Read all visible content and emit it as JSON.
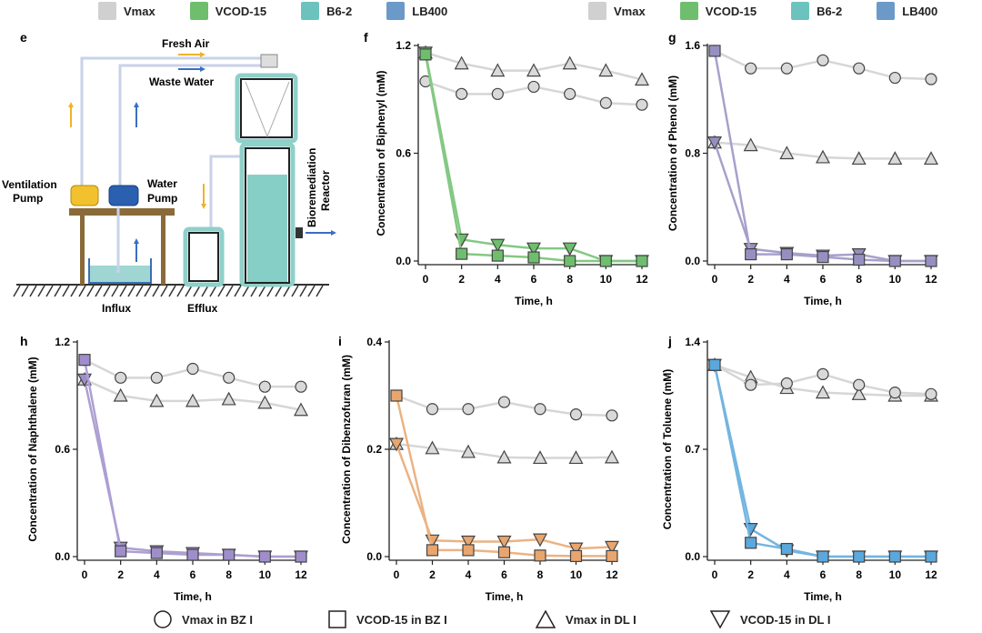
{
  "legend_top": [
    {
      "label": "Vmax",
      "color": "#d0d0d0"
    },
    {
      "label": "VCOD-15",
      "color": "#6ebe6e"
    },
    {
      "label": "B6-2",
      "color": "#6cc3bd"
    },
    {
      "label": "LB400",
      "color": "#6b9ac8"
    }
  ],
  "legend_bottom": [
    {
      "label": "Vmax in BZ I",
      "marker": "circle"
    },
    {
      "label": "VCOD-15 in BZ I",
      "marker": "square"
    },
    {
      "label": "Vmax in DL I",
      "marker": "triangle-up"
    },
    {
      "label": "VCOD-15 in DL I",
      "marker": "triangle-down"
    }
  ],
  "diagram": {
    "letter": "e",
    "fresh_air": "Fresh Air",
    "waste_water": "Waste Water",
    "ventilation_pump": [
      "Ventilation",
      "Pump"
    ],
    "water_pump": [
      "Water",
      "Pump"
    ],
    "reactor": [
      "Bioremediation",
      "Reactor"
    ],
    "influx": "Influx",
    "efflux": "Efflux"
  },
  "chart_data": [
    {
      "letter": "f",
      "type": "line",
      "xlabel": "Time, h",
      "ylabel": "Concentration of Biphenyl (mM)",
      "ylim": [
        0,
        1.2
      ],
      "yticks": [
        "0.0",
        "0.6",
        "1.2"
      ],
      "x": [
        0,
        2,
        4,
        6,
        8,
        10,
        12
      ],
      "color": "#6ebe6e",
      "series": [
        {
          "name": "Vmax in BZ I",
          "marker": "circle",
          "values": [
            1.0,
            0.93,
            0.93,
            0.97,
            0.93,
            0.88,
            0.87
          ]
        },
        {
          "name": "VCOD-15 in BZ I",
          "marker": "square",
          "values": [
            1.15,
            0.04,
            0.03,
            0.02,
            0.0,
            0.0,
            0.0
          ]
        },
        {
          "name": "Vmax in DL I",
          "marker": "triangle-up",
          "values": [
            1.16,
            1.1,
            1.06,
            1.06,
            1.1,
            1.06,
            1.01
          ]
        },
        {
          "name": "VCOD-15 in DL I",
          "marker": "triangle-down",
          "values": [
            1.16,
            0.12,
            0.09,
            0.07,
            0.07,
            0.0,
            0.0
          ]
        }
      ]
    },
    {
      "letter": "g",
      "type": "line",
      "xlabel": "Time, h",
      "ylabel": "Concentration of Phenol (mM)",
      "ylim": [
        0,
        1.6
      ],
      "yticks": [
        "0.0",
        "0.8",
        "1.6"
      ],
      "x": [
        0,
        2,
        4,
        6,
        8,
        10,
        12
      ],
      "color": "#9690c2",
      "series": [
        {
          "name": "Vmax in BZ I",
          "marker": "circle",
          "values": [
            1.56,
            1.43,
            1.43,
            1.49,
            1.43,
            1.36,
            1.35
          ]
        },
        {
          "name": "VCOD-15 in BZ I",
          "marker": "square",
          "values": [
            1.56,
            0.05,
            0.05,
            0.03,
            0.01,
            0.0,
            0.0
          ]
        },
        {
          "name": "Vmax in DL I",
          "marker": "triangle-up",
          "values": [
            0.88,
            0.86,
            0.8,
            0.77,
            0.76,
            0.76,
            0.76
          ]
        },
        {
          "name": "VCOD-15 in DL I",
          "marker": "triangle-down",
          "values": [
            0.88,
            0.09,
            0.06,
            0.04,
            0.05,
            0.0,
            0.0
          ]
        }
      ]
    },
    {
      "letter": "h",
      "type": "line",
      "xlabel": "Time, h",
      "ylabel": "Concentration of Naphthalene (mM)",
      "ylim": [
        0,
        1.2
      ],
      "yticks": [
        "0.0",
        "0.6",
        "1.2"
      ],
      "x": [
        0,
        2,
        4,
        6,
        8,
        10,
        12
      ],
      "color": "#9f8ecb",
      "series": [
        {
          "name": "Vmax in BZ I",
          "marker": "circle",
          "values": [
            1.1,
            1.0,
            1.0,
            1.05,
            1.0,
            0.95,
            0.95
          ]
        },
        {
          "name": "VCOD-15 in BZ I",
          "marker": "square",
          "values": [
            1.1,
            0.03,
            0.02,
            0.01,
            0.01,
            0.0,
            0.0
          ]
        },
        {
          "name": "Vmax in DL I",
          "marker": "triangle-up",
          "values": [
            0.99,
            0.9,
            0.87,
            0.87,
            0.88,
            0.86,
            0.82
          ]
        },
        {
          "name": "VCOD-15 in DL I",
          "marker": "triangle-down",
          "values": [
            0.99,
            0.05,
            0.03,
            0.02,
            0.01,
            0.0,
            0.0
          ]
        }
      ]
    },
    {
      "letter": "i",
      "type": "line",
      "xlabel": "Time, h",
      "ylabel": "Concentration of Dibenzofuran (mM)",
      "ylim": [
        0,
        0.4
      ],
      "yticks": [
        "0.0",
        "0.2",
        "0.4"
      ],
      "x": [
        0,
        2,
        4,
        6,
        8,
        10,
        12
      ],
      "color": "#e8a56e",
      "series": [
        {
          "name": "Vmax in BZ I",
          "marker": "circle",
          "values": [
            0.3,
            0.275,
            0.275,
            0.288,
            0.275,
            0.265,
            0.263
          ]
        },
        {
          "name": "VCOD-15 in BZ I",
          "marker": "square",
          "values": [
            0.3,
            0.012,
            0.012,
            0.008,
            0.002,
            0.001,
            0.001
          ]
        },
        {
          "name": "Vmax in DL I",
          "marker": "triangle-up",
          "values": [
            0.21,
            0.202,
            0.195,
            0.185,
            0.184,
            0.184,
            0.185
          ]
        },
        {
          "name": "VCOD-15 in DL I",
          "marker": "triangle-down",
          "values": [
            0.21,
            0.03,
            0.028,
            0.028,
            0.032,
            0.015,
            0.018
          ]
        }
      ]
    },
    {
      "letter": "j",
      "type": "line",
      "xlabel": "Time, h",
      "ylabel": "Concentration of Toluene (mM)",
      "ylim": [
        0,
        1.4
      ],
      "yticks": [
        "0.0",
        "0.7",
        "1.4"
      ],
      "x": [
        0,
        2,
        4,
        6,
        8,
        10,
        12
      ],
      "color": "#5aa8dc",
      "series": [
        {
          "name": "Vmax in BZ I",
          "marker": "circle",
          "values": [
            1.25,
            1.12,
            1.13,
            1.19,
            1.12,
            1.07,
            1.06
          ]
        },
        {
          "name": "VCOD-15 in BZ I",
          "marker": "square",
          "values": [
            1.25,
            0.09,
            0.05,
            0.0,
            0.0,
            0.0,
            0.0
          ]
        },
        {
          "name": "Vmax in DL I",
          "marker": "triangle-up",
          "values": [
            1.25,
            1.17,
            1.1,
            1.07,
            1.06,
            1.05,
            1.05
          ]
        },
        {
          "name": "VCOD-15 in DL I",
          "marker": "triangle-down",
          "values": [
            1.25,
            0.18,
            0.04,
            0.0,
            0.0,
            0.0,
            0.0
          ]
        }
      ]
    }
  ]
}
